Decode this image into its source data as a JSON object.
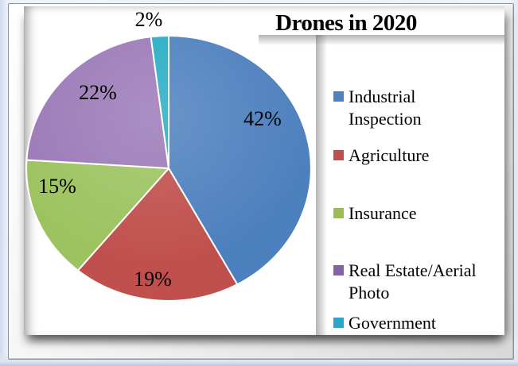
{
  "chart_data": {
    "type": "pie",
    "title": "Drones in 2020",
    "categories": [
      "Industrial Inspection",
      "Agriculture",
      "Insurance",
      "Real Estate/Aerial Photo",
      "Government"
    ],
    "values": [
      42,
      19,
      15,
      22,
      2
    ],
    "unit": "%",
    "labels": [
      "42%",
      "19%",
      "15%",
      "22%",
      "2%"
    ],
    "legend": [
      "Industrial\nInspection",
      "Agriculture",
      "Insurance",
      "Real Estate/Aerial\nPhoto",
      "Government"
    ],
    "slice_colors": [
      "#4D80BE",
      "#C0504D",
      "#9CC35F",
      "#9B79B7",
      "#27ACC4"
    ],
    "marker_colors": [
      "#4F81BD",
      "#C0504D",
      "#9BBB59",
      "#8064A2",
      "#2BA6C4"
    ],
    "label_color": "#000000",
    "legend_position": "right",
    "start_angle_deg": 0,
    "direction": "clockwise"
  }
}
